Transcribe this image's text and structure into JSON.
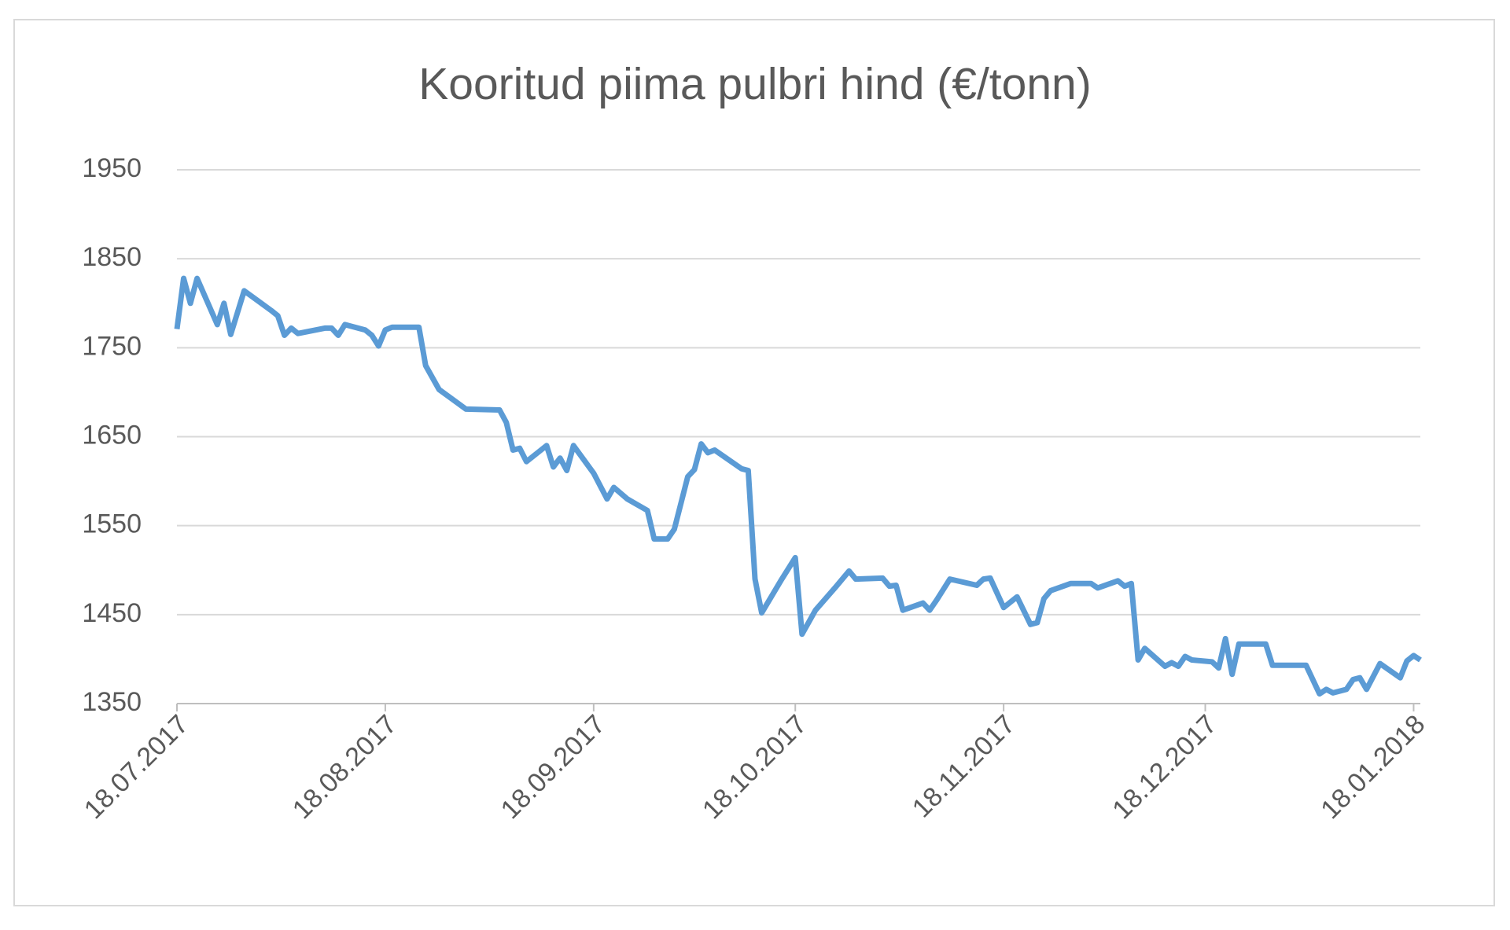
{
  "chart_data": {
    "type": "line",
    "title": "Kooritud piima pulbri hind (€/tonn)",
    "x": [
      "2017-07-18",
      "2017-07-19",
      "2017-07-20",
      "2017-07-21",
      "2017-07-24",
      "2017-07-25",
      "2017-07-26",
      "2017-07-28",
      "2017-08-01",
      "2017-08-02",
      "2017-08-03",
      "2017-08-04",
      "2017-08-05",
      "2017-08-09",
      "2017-08-10",
      "2017-08-11",
      "2017-08-12",
      "2017-08-15",
      "2017-08-16",
      "2017-08-17",
      "2017-08-18",
      "2017-08-19",
      "2017-08-23",
      "2017-08-24",
      "2017-08-26",
      "2017-08-30",
      "2017-09-04",
      "2017-09-05",
      "2017-09-06",
      "2017-09-07",
      "2017-09-08",
      "2017-09-11",
      "2017-09-12",
      "2017-09-13",
      "2017-09-14",
      "2017-09-15",
      "2017-09-18",
      "2017-09-20",
      "2017-09-21",
      "2017-09-23",
      "2017-09-26",
      "2017-09-27",
      "2017-09-29",
      "2017-09-30",
      "2017-10-02",
      "2017-10-03",
      "2017-10-04",
      "2017-10-05",
      "2017-10-06",
      "2017-10-10",
      "2017-10-11",
      "2017-10-12",
      "2017-10-13",
      "2017-10-16",
      "2017-10-18",
      "2017-10-19",
      "2017-10-21",
      "2017-10-24",
      "2017-10-26",
      "2017-10-27",
      "2017-10-31",
      "2017-11-01",
      "2017-11-02",
      "2017-11-03",
      "2017-11-06",
      "2017-11-07",
      "2017-11-08",
      "2017-11-10",
      "2017-11-14",
      "2017-11-15",
      "2017-11-16",
      "2017-11-18",
      "2017-11-20",
      "2017-11-22",
      "2017-11-23",
      "2017-11-24",
      "2017-11-25",
      "2017-11-28",
      "2017-12-01",
      "2017-12-02",
      "2017-12-05",
      "2017-12-06",
      "2017-12-07",
      "2017-12-08",
      "2017-12-09",
      "2017-12-12",
      "2017-12-13",
      "2017-12-14",
      "2017-12-15",
      "2017-12-16",
      "2017-12-19",
      "2017-12-20",
      "2017-12-21",
      "2017-12-22",
      "2017-12-23",
      "2017-12-27",
      "2017-12-28",
      "2018-01-02",
      "2018-01-04",
      "2018-01-05",
      "2018-01-06",
      "2018-01-08",
      "2018-01-09",
      "2018-01-10",
      "2018-01-11",
      "2018-01-13",
      "2018-01-16",
      "2018-01-17",
      "2018-01-18",
      "2018-01-19"
    ],
    "values": [
      1771,
      1828,
      1800,
      1828,
      1776,
      1800,
      1765,
      1814,
      1792,
      1786,
      1764,
      1772,
      1766,
      1772,
      1772,
      1764,
      1776,
      1770,
      1764,
      1752,
      1770,
      1773,
      1773,
      1730,
      1703,
      1681,
      1680,
      1666,
      1635,
      1637,
      1622,
      1640,
      1616,
      1626,
      1612,
      1640,
      1609,
      1580,
      1593,
      1580,
      1567,
      1535,
      1535,
      1546,
      1605,
      1613,
      1642,
      1632,
      1635,
      1614,
      1612,
      1490,
      1452,
      1490,
      1514,
      1428,
      1455,
      1481,
      1499,
      1490,
      1491,
      1482,
      1483,
      1455,
      1463,
      1455,
      1466,
      1490,
      1483,
      1490,
      1491,
      1458,
      1470,
      1439,
      1441,
      1468,
      1477,
      1485,
      1485,
      1480,
      1488,
      1482,
      1485,
      1399,
      1412,
      1392,
      1396,
      1392,
      1403,
      1399,
      1397,
      1390,
      1423,
      1383,
      1417,
      1417,
      1393,
      1393,
      1361,
      1366,
      1362,
      1366,
      1377,
      1379,
      1366,
      1395,
      1379,
      1398,
      1404,
      1399
    ],
    "color": "#5b9bd5",
    "xlim": [
      "2017-07-18",
      "2018-01-19"
    ],
    "xticks": [
      {
        "value": "2017-07-18",
        "label": "18.07.2017"
      },
      {
        "value": "2017-08-18",
        "label": "18.08.2017"
      },
      {
        "value": "2017-09-18",
        "label": "18.09.2017"
      },
      {
        "value": "2017-10-18",
        "label": "18.10.2017"
      },
      {
        "value": "2017-11-18",
        "label": "18.11.2017"
      },
      {
        "value": "2017-12-18",
        "label": "18.12.2017"
      },
      {
        "value": "2018-01-18",
        "label": "18.01.2018"
      }
    ],
    "ylim": [
      1350,
      1950
    ],
    "yticks": [
      1350,
      1450,
      1550,
      1650,
      1750,
      1850,
      1950
    ],
    "grid": true
  }
}
